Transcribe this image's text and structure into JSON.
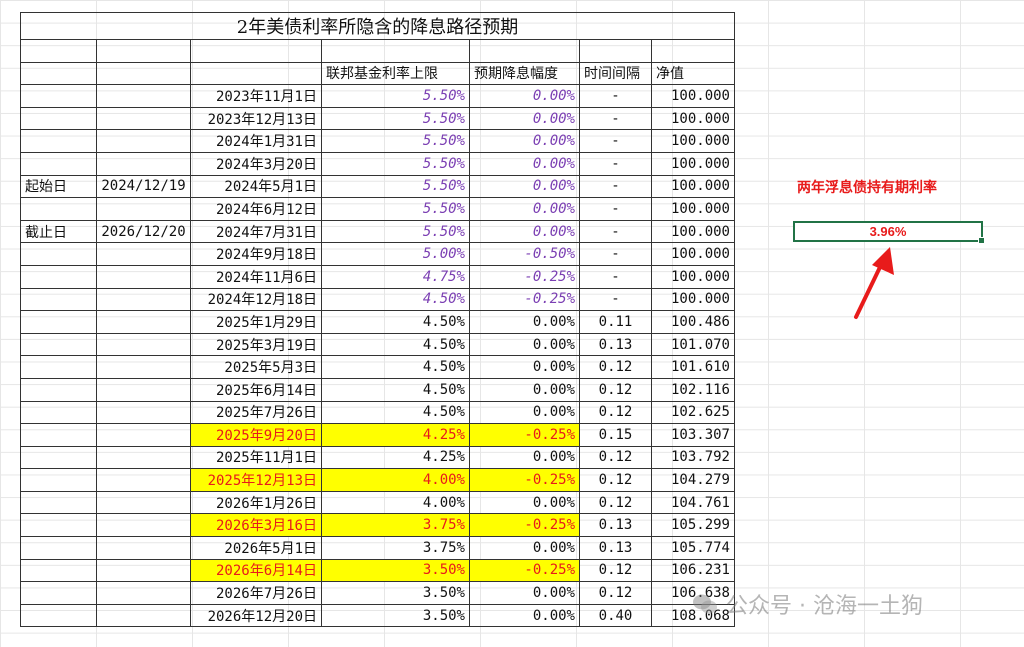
{
  "title": "2年美债利率所隐含的降息路径预期",
  "headers": {
    "fed_upper": "联邦基金利率上限",
    "cut_size": "预期降息幅度",
    "interval": "时间间隔",
    "nav": "净值"
  },
  "start": {
    "label": "起始日",
    "date": "2024/12/19"
  },
  "end": {
    "label": "截止日",
    "date": "2026/12/20"
  },
  "rows": [
    {
      "date": "2023年11月1日",
      "rate": "5.50%",
      "cut": "0.00%",
      "interval": "-",
      "nav": "100.000",
      "style": "purple"
    },
    {
      "date": "2023年12月13日",
      "rate": "5.50%",
      "cut": "0.00%",
      "interval": "-",
      "nav": "100.000",
      "style": "purple"
    },
    {
      "date": "2024年1月31日",
      "rate": "5.50%",
      "cut": "0.00%",
      "interval": "-",
      "nav": "100.000",
      "style": "purple"
    },
    {
      "date": "2024年3月20日",
      "rate": "5.50%",
      "cut": "0.00%",
      "interval": "-",
      "nav": "100.000",
      "style": "purple"
    },
    {
      "date": "2024年5月1日",
      "rate": "5.50%",
      "cut": "0.00%",
      "interval": "-",
      "nav": "100.000",
      "style": "purple"
    },
    {
      "date": "2024年6月12日",
      "rate": "5.50%",
      "cut": "0.00%",
      "interval": "-",
      "nav": "100.000",
      "style": "purple"
    },
    {
      "date": "2024年7月31日",
      "rate": "5.50%",
      "cut": "0.00%",
      "interval": "-",
      "nav": "100.000",
      "style": "purple"
    },
    {
      "date": "2024年9月18日",
      "rate": "5.00%",
      "cut": "-0.50%",
      "interval": "-",
      "nav": "100.000",
      "style": "purple"
    },
    {
      "date": "2024年11月6日",
      "rate": "4.75%",
      "cut": "-0.25%",
      "interval": "-",
      "nav": "100.000",
      "style": "purple"
    },
    {
      "date": "2024年12月18日",
      "rate": "4.50%",
      "cut": "-0.25%",
      "interval": "-",
      "nav": "100.000",
      "style": "purple"
    },
    {
      "date": "2025年1月29日",
      "rate": "4.50%",
      "cut": "0.00%",
      "interval": "0.11",
      "nav": "100.486",
      "style": "normal"
    },
    {
      "date": "2025年3月19日",
      "rate": "4.50%",
      "cut": "0.00%",
      "interval": "0.13",
      "nav": "101.070",
      "style": "normal"
    },
    {
      "date": "2025年5月3日",
      "rate": "4.50%",
      "cut": "0.00%",
      "interval": "0.12",
      "nav": "101.610",
      "style": "normal"
    },
    {
      "date": "2025年6月14日",
      "rate": "4.50%",
      "cut": "0.00%",
      "interval": "0.12",
      "nav": "102.116",
      "style": "normal"
    },
    {
      "date": "2025年7月26日",
      "rate": "4.50%",
      "cut": "0.00%",
      "interval": "0.12",
      "nav": "102.625",
      "style": "normal"
    },
    {
      "date": "2025年9月20日",
      "rate": "4.25%",
      "cut": "-0.25%",
      "interval": "0.15",
      "nav": "103.307",
      "style": "highlight"
    },
    {
      "date": "2025年11月1日",
      "rate": "4.25%",
      "cut": "0.00%",
      "interval": "0.12",
      "nav": "103.792",
      "style": "normal"
    },
    {
      "date": "2025年12月13日",
      "rate": "4.00%",
      "cut": "-0.25%",
      "interval": "0.12",
      "nav": "104.279",
      "style": "highlight"
    },
    {
      "date": "2026年1月26日",
      "rate": "4.00%",
      "cut": "0.00%",
      "interval": "0.12",
      "nav": "104.761",
      "style": "normal"
    },
    {
      "date": "2026年3月16日",
      "rate": "3.75%",
      "cut": "-0.25%",
      "interval": "0.13",
      "nav": "105.299",
      "style": "highlight"
    },
    {
      "date": "2026年5月1日",
      "rate": "3.75%",
      "cut": "0.00%",
      "interval": "0.13",
      "nav": "105.774",
      "style": "normal"
    },
    {
      "date": "2026年6月14日",
      "rate": "3.50%",
      "cut": "-0.25%",
      "interval": "0.12",
      "nav": "106.231",
      "style": "highlight"
    },
    {
      "date": "2026年7月26日",
      "rate": "3.50%",
      "cut": "0.00%",
      "interval": "0.12",
      "nav": "106.638",
      "style": "normal"
    },
    {
      "date": "2026年12月20日",
      "rate": "3.50%",
      "cut": "0.00%",
      "interval": "0.40",
      "nav": "108.068",
      "style": "normal"
    }
  ],
  "side": {
    "label": "两年浮息债持有期利率",
    "value": "3.96%"
  },
  "watermark": "公众号 · 沧海一土狗",
  "colors": {
    "purple_text": "#7b3fb3",
    "highlight_bg": "#ffff00",
    "highlight_text": "#e81b1b",
    "selection_border": "#217346",
    "arrow": "#e81b1b"
  }
}
